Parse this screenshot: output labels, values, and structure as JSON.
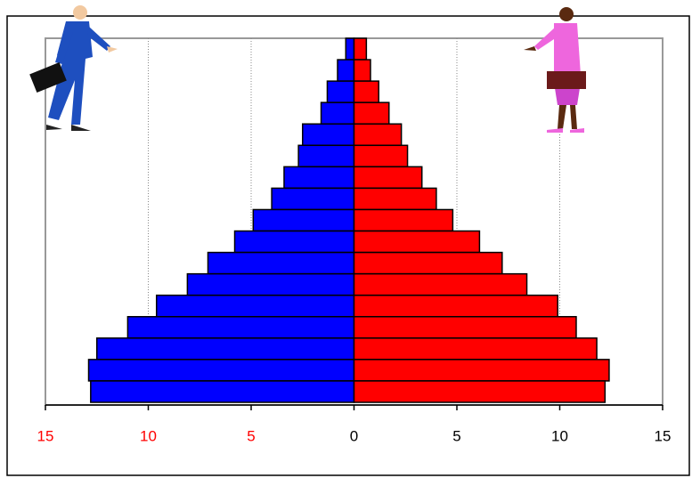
{
  "chart_data": {
    "type": "pyramid",
    "xlim": [
      -15,
      15
    ],
    "xticks": [
      {
        "value": -15,
        "label": "15"
      },
      {
        "value": -10,
        "label": "10"
      },
      {
        "value": -5,
        "label": "5"
      },
      0,
      5,
      10,
      15
    ],
    "negative_tick_color": "#ff0000",
    "grid": true,
    "series": [
      {
        "color": "#0000ff",
        "values": [
          -0.4,
          -0.8,
          -1.3,
          -1.6,
          -2.5,
          -2.7,
          -3.4,
          -4.0,
          -4.9,
          -5.8,
          -7.1,
          -8.1,
          -9.6,
          -11.0,
          -12.5,
          -12.9,
          -12.8
        ]
      },
      {
        "color": "#ff0000",
        "values": [
          0.6,
          0.8,
          1.2,
          1.7,
          2.3,
          2.6,
          3.3,
          4.0,
          4.8,
          6.1,
          7.2,
          8.4,
          9.9,
          10.8,
          11.8,
          12.4,
          12.2
        ]
      }
    ]
  }
}
